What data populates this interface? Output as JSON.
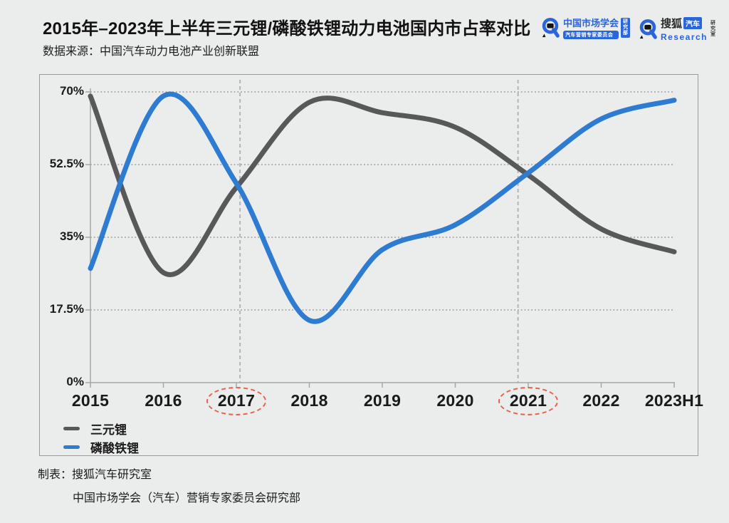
{
  "page": {
    "title": "2015年–2023年上半年三元锂/磷酸铁锂动力电池国内市占率对比",
    "source": "数据来源：中国汽车动力电池产业创新联盟",
    "footer": {
      "label": "制表：",
      "line1": "搜狐汽车研究室",
      "line2": "中国市场学会（汽车）营销专家委员会研究部"
    }
  },
  "logos": {
    "market_society": {
      "name": "中国市场学会",
      "subtitle": "汽车营销专家委员会",
      "badge": "研究部",
      "accent_color": "#2a66d9"
    },
    "sohu": {
      "name": "搜狐",
      "badge": "汽车",
      "research": "Research",
      "vertical": "研究室",
      "accent_color": "#2a66d9"
    }
  },
  "chart_data": {
    "type": "line",
    "title": "2015年–2023年上半年三元锂/磷酸铁锂动力电池国内市占率对比",
    "categories": [
      "2015",
      "2016",
      "2017",
      "2018",
      "2019",
      "2020",
      "2021",
      "2022",
      "2023H1"
    ],
    "series": [
      {
        "name": "三元锂",
        "color": "#57585a",
        "values": [
          69,
          26.5,
          47,
          67.5,
          65,
          61.5,
          50,
          37,
          31.5
        ]
      },
      {
        "name": "磷酸铁锂",
        "color": "#2e7bd2",
        "values": [
          27.5,
          69,
          48,
          15,
          32,
          38,
          50.5,
          63.5,
          68
        ]
      }
    ],
    "unit": "%",
    "y_ticks": [
      {
        "label": "70%",
        "value": 70
      },
      {
        "label": "52.5%",
        "value": 52.5
      },
      {
        "label": "35%",
        "value": 35
      },
      {
        "label": "17.5%",
        "value": 17.5
      },
      {
        "label": "0%",
        "value": 0
      }
    ],
    "ylim": [
      0,
      70
    ],
    "xlabel": "",
    "ylabel": "",
    "grid": "dotted-horizontal",
    "legend_position": "bottom-left",
    "smooth": true,
    "highlight_lines": [
      {
        "year": "2017",
        "index_frac": 2.05
      },
      {
        "year": "2021",
        "index_frac": 5.86
      }
    ],
    "highlight_circled_years": [
      "2017",
      "2021"
    ],
    "highlight_color": "#e8604b",
    "gridline_color": "#999999",
    "axis_color": "#a6a6a6"
  }
}
